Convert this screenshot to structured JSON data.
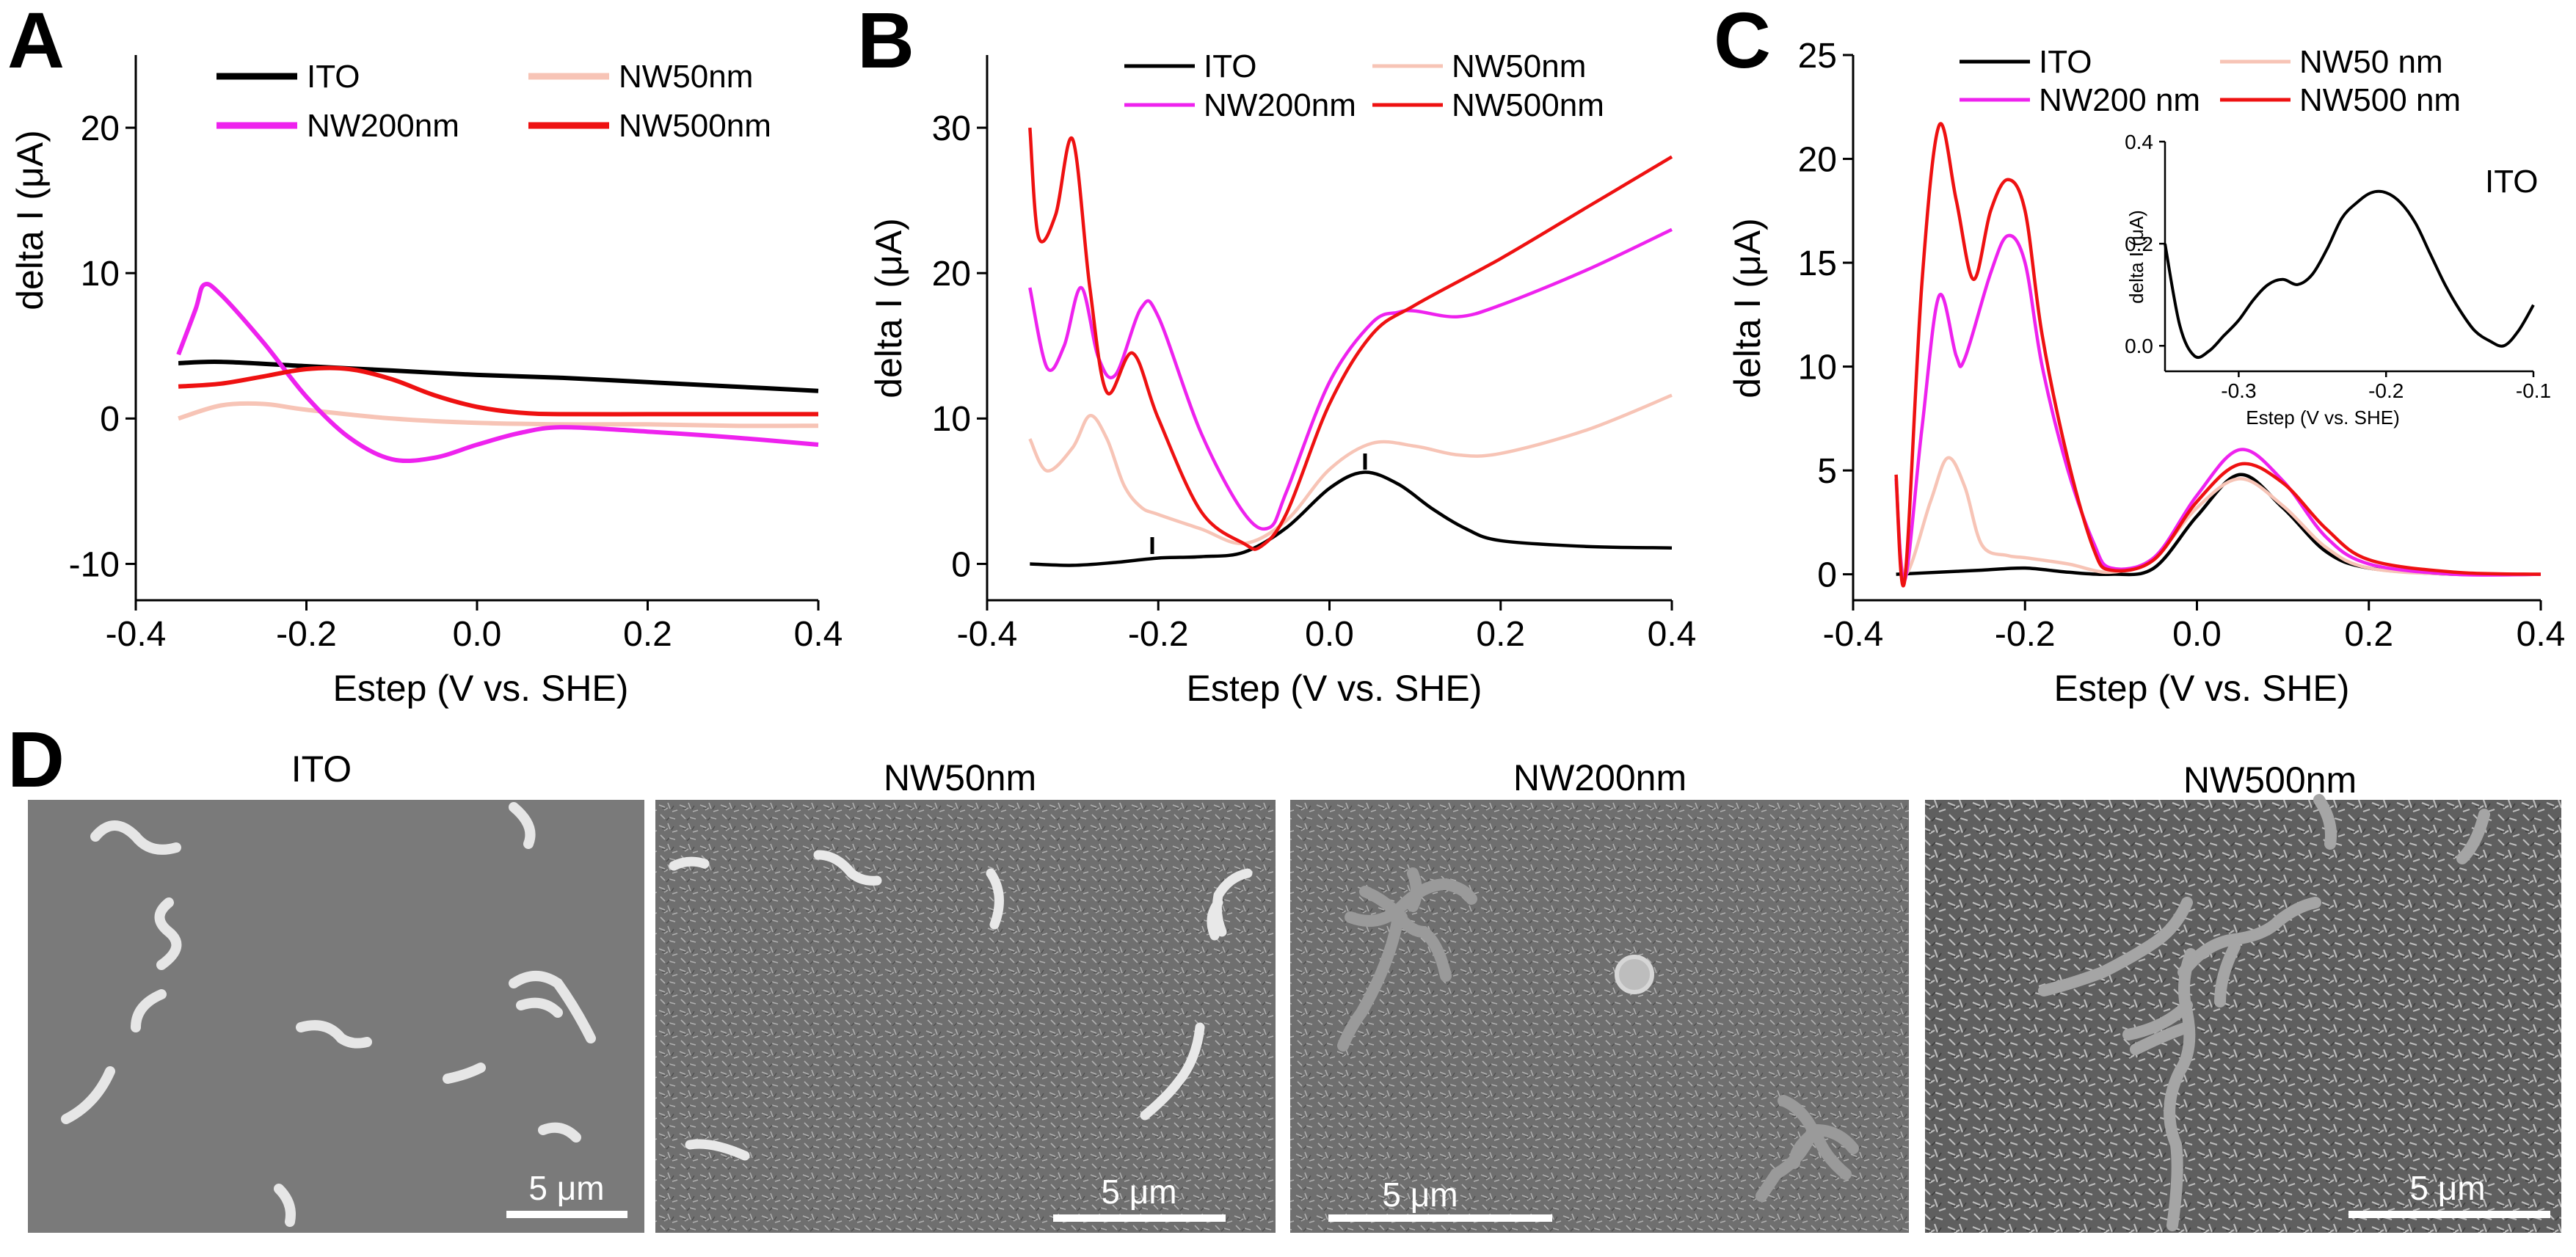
{
  "panel_d": {
    "letter": "D",
    "images": [
      {
        "title": "ITO",
        "scale_bar": "5 μm"
      },
      {
        "title": "NW50nm",
        "scale_bar": "5 μm"
      },
      {
        "title": "NW200nm",
        "scale_bar": "5 μm"
      },
      {
        "title": "NW500nm",
        "scale_bar": "5 μm"
      }
    ]
  },
  "colors": {
    "ITO": "#000000",
    "NW50nm": "#f7c4b6",
    "NW200nm": "#ee22ee",
    "NW500nm": "#ee1111"
  },
  "chart_data": [
    {
      "panel": "A",
      "type": "line",
      "xlabel": "Estep (V vs. SHE)",
      "ylabel": "delta I (μA)",
      "xlim": [
        -0.4,
        0.4
      ],
      "ylim": [
        -12.5,
        25
      ],
      "xticks": [
        "-0.4",
        "-0.2",
        "0.0",
        "0.2",
        "0.4"
      ],
      "yticks": [
        "-10",
        "0",
        "10",
        "20"
      ],
      "legend": [
        "ITO",
        "NW50nm",
        "NW200nm",
        "NW500nm"
      ],
      "series": [
        {
          "name": "ITO",
          "x": [
            -0.35,
            -0.3,
            -0.2,
            -0.1,
            0.0,
            0.1,
            0.2,
            0.3,
            0.4
          ],
          "y": [
            3.8,
            3.9,
            3.6,
            3.3,
            3.0,
            2.8,
            2.5,
            2.2,
            1.9
          ]
        },
        {
          "name": "NW50nm",
          "x": [
            -0.35,
            -0.3,
            -0.25,
            -0.2,
            -0.1,
            0.0,
            0.1,
            0.2,
            0.3,
            0.4
          ],
          "y": [
            0.0,
            0.9,
            1.0,
            0.6,
            0.0,
            -0.3,
            -0.4,
            -0.4,
            -0.5,
            -0.5
          ]
        },
        {
          "name": "NW200nm",
          "x": [
            -0.35,
            -0.33,
            -0.32,
            -0.3,
            -0.25,
            -0.2,
            -0.15,
            -0.1,
            -0.05,
            0.0,
            0.05,
            0.1,
            0.2,
            0.3,
            0.4
          ],
          "y": [
            4.4,
            7.5,
            9.2,
            8.5,
            5.2,
            1.5,
            -1.3,
            -2.8,
            -2.7,
            -1.8,
            -1.0,
            -0.6,
            -0.9,
            -1.3,
            -1.8
          ]
        },
        {
          "name": "NW500nm",
          "x": [
            -0.35,
            -0.3,
            -0.25,
            -0.2,
            -0.15,
            -0.1,
            -0.05,
            0.0,
            0.05,
            0.1,
            0.2,
            0.3,
            0.4
          ],
          "y": [
            2.2,
            2.4,
            2.9,
            3.4,
            3.4,
            2.7,
            1.6,
            0.8,
            0.4,
            0.3,
            0.3,
            0.3,
            0.3
          ]
        }
      ]
    },
    {
      "panel": "B",
      "type": "line",
      "xlabel": "Estep (V vs. SHE)",
      "ylabel": "delta I (μA)",
      "xlim": [
        -0.4,
        0.4
      ],
      "ylim": [
        -2.5,
        35
      ],
      "xticks": [
        "-0.4",
        "-0.2",
        "0.0",
        "0.2",
        "0.4"
      ],
      "yticks": [
        "0",
        "10",
        "20",
        "30"
      ],
      "legend": [
        "ITO",
        "NW50nm",
        "NW200nm",
        "NW500nm"
      ],
      "series": [
        {
          "name": "ITO",
          "x": [
            -0.35,
            -0.3,
            -0.25,
            -0.2,
            -0.15,
            -0.1,
            -0.05,
            0.0,
            0.04,
            0.08,
            0.12,
            0.16,
            0.2,
            0.3,
            0.4
          ],
          "y": [
            0.0,
            -0.1,
            0.1,
            0.4,
            0.5,
            0.8,
            2.5,
            5.2,
            6.3,
            5.5,
            3.8,
            2.4,
            1.6,
            1.2,
            1.1
          ]
        },
        {
          "name": "NW50nm",
          "x": [
            -0.35,
            -0.33,
            -0.3,
            -0.28,
            -0.26,
            -0.24,
            -0.22,
            -0.2,
            -0.15,
            -0.1,
            -0.05,
            0.0,
            0.05,
            0.1,
            0.15,
            0.2,
            0.3,
            0.4
          ],
          "y": [
            8.6,
            6.4,
            8.0,
            10.2,
            8.6,
            5.4,
            3.9,
            3.4,
            2.4,
            1.4,
            3.0,
            6.5,
            8.3,
            8.1,
            7.5,
            7.6,
            9.2,
            11.6
          ]
        },
        {
          "name": "NW200nm",
          "x": [
            -0.35,
            -0.33,
            -0.31,
            -0.29,
            -0.27,
            -0.25,
            -0.22,
            -0.2,
            -0.15,
            -0.1,
            -0.07,
            -0.05,
            0.0,
            0.05,
            0.08,
            0.1,
            0.15,
            0.2,
            0.3,
            0.4
          ],
          "y": [
            19.0,
            13.5,
            15.0,
            19.0,
            14.2,
            13.0,
            17.6,
            17.0,
            9.0,
            3.5,
            2.5,
            5.0,
            12.5,
            16.6,
            17.3,
            17.4,
            17.0,
            17.8,
            20.2,
            23.0
          ]
        },
        {
          "name": "NW500nm",
          "x": [
            -0.35,
            -0.34,
            -0.32,
            -0.3,
            -0.28,
            -0.26,
            -0.23,
            -0.2,
            -0.15,
            -0.1,
            -0.08,
            -0.05,
            0.0,
            0.05,
            0.1,
            0.2,
            0.3,
            0.4
          ],
          "y": [
            30.0,
            22.5,
            24.0,
            29.2,
            19.0,
            11.8,
            14.5,
            10.0,
            3.6,
            1.4,
            1.2,
            3.5,
            11.0,
            15.8,
            17.8,
            21.0,
            24.5,
            28.0
          ]
        }
      ]
    },
    {
      "panel": "C",
      "type": "line",
      "xlabel": "Estep (V vs. SHE)",
      "ylabel": "delta I (μA)",
      "xlim": [
        -0.4,
        0.4
      ],
      "ylim": [
        -1.25,
        25
      ],
      "xticks": [
        "-0.4",
        "-0.2",
        "0.0",
        "0.2",
        "0.4"
      ],
      "yticks": [
        "0",
        "5",
        "10",
        "15",
        "20",
        "25"
      ],
      "legend": [
        "ITO",
        "NW50 nm",
        "NW200 nm",
        "NW500 nm"
      ],
      "series": [
        {
          "name": "ITO",
          "x": [
            -0.35,
            -0.3,
            -0.25,
            -0.2,
            -0.15,
            -0.1,
            -0.05,
            0.0,
            0.05,
            0.1,
            0.15,
            0.2,
            0.3,
            0.4
          ],
          "y": [
            0.0,
            0.1,
            0.2,
            0.3,
            0.1,
            0.0,
            0.3,
            2.8,
            4.8,
            3.2,
            1.1,
            0.3,
            0.0,
            0.0
          ]
        },
        {
          "name": "NW50 nm",
          "x": [
            -0.35,
            -0.34,
            -0.31,
            -0.29,
            -0.27,
            -0.25,
            -0.22,
            -0.2,
            -0.15,
            -0.1,
            -0.05,
            0.0,
            0.05,
            0.1,
            0.15,
            0.2,
            0.3,
            0.4
          ],
          "y": [
            4.4,
            0.0,
            3.5,
            5.6,
            4.2,
            1.4,
            0.9,
            0.8,
            0.5,
            0.1,
            0.8,
            3.2,
            4.6,
            3.3,
            1.3,
            0.3,
            0.0,
            0.0
          ]
        },
        {
          "name": "NW200 nm",
          "x": [
            -0.35,
            -0.34,
            -0.32,
            -0.3,
            -0.28,
            -0.27,
            -0.24,
            -0.22,
            -0.2,
            -0.18,
            -0.15,
            -0.12,
            -0.1,
            -0.05,
            0.0,
            0.05,
            0.1,
            0.15,
            0.2,
            0.3,
            0.4
          ],
          "y": [
            4.6,
            -0.3,
            7.0,
            13.4,
            10.5,
            10.4,
            14.5,
            16.3,
            15.0,
            10.0,
            5.0,
            1.5,
            0.3,
            0.8,
            3.8,
            6.0,
            4.5,
            1.8,
            0.5,
            0.0,
            0.0
          ]
        },
        {
          "name": "NW500 nm",
          "x": [
            -0.35,
            -0.34,
            -0.32,
            -0.3,
            -0.28,
            -0.26,
            -0.24,
            -0.22,
            -0.2,
            -0.18,
            -0.15,
            -0.12,
            -0.1,
            -0.05,
            0.0,
            0.05,
            0.1,
            0.15,
            0.2,
            0.3,
            0.4
          ],
          "y": [
            4.8,
            -0.3,
            14.0,
            21.6,
            18.0,
            14.2,
            17.5,
            19.0,
            17.5,
            11.5,
            5.5,
            1.2,
            0.2,
            0.7,
            3.5,
            5.3,
            4.4,
            2.2,
            0.7,
            0.1,
            0.0
          ]
        }
      ],
      "inset": {
        "title": "ITO",
        "type": "line",
        "xlabel": "Estep (V vs. SHE)",
        "ylabel": "delta I (μA)",
        "xlim": [
          -0.35,
          -0.1
        ],
        "ylim": [
          -0.05,
          0.4
        ],
        "xticks": [
          "-0.3",
          "-0.2",
          "-0.1"
        ],
        "yticks": [
          "0.0",
          "0.2",
          "0.4"
        ],
        "series": [
          {
            "name": "ITO",
            "x": [
              -0.35,
              -0.34,
              -0.33,
              -0.32,
              -0.31,
              -0.3,
              -0.29,
              -0.28,
              -0.27,
              -0.26,
              -0.25,
              -0.24,
              -0.23,
              -0.22,
              -0.21,
              -0.2,
              -0.19,
              -0.18,
              -0.17,
              -0.16,
              -0.15,
              -0.14,
              -0.13,
              -0.12,
              -0.11,
              -0.1
            ],
            "y": [
              0.2,
              0.04,
              -0.02,
              -0.01,
              0.02,
              0.05,
              0.09,
              0.12,
              0.13,
              0.12,
              0.14,
              0.19,
              0.25,
              0.28,
              0.3,
              0.3,
              0.28,
              0.24,
              0.18,
              0.12,
              0.07,
              0.03,
              0.01,
              0.0,
              0.03,
              0.08
            ]
          }
        ]
      }
    }
  ]
}
